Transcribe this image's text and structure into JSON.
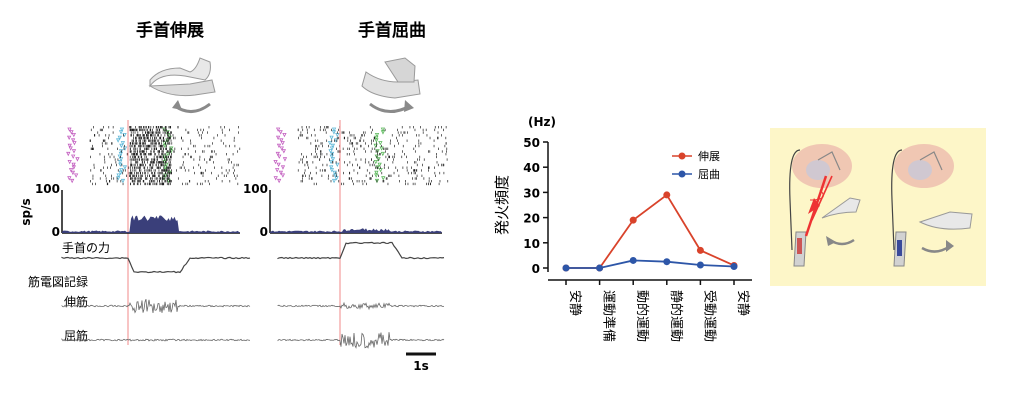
{
  "panels": {
    "extension": {
      "title": "手首伸展"
    },
    "flexion": {
      "title": "手首屈曲"
    }
  },
  "raster": {
    "rate_axis_label": "sp/s",
    "rate_max": "100",
    "rate_min": "0"
  },
  "traces": {
    "force_label": "手首の力",
    "emg_label": "筋電図記録",
    "extensor_label": "伸筋",
    "flexor_label": "屈筋"
  },
  "scale_bar": {
    "label": "1s"
  },
  "chart_data": {
    "type": "line",
    "title": "",
    "ylabel": "発火頻度",
    "yunit": "(Hz)",
    "ylim": [
      0,
      50
    ],
    "yticks": [
      0,
      10,
      20,
      30,
      40,
      50
    ],
    "categories": [
      "安静",
      "運動準備",
      "動的運動",
      "静的運動",
      "受動運動",
      "安静"
    ],
    "legend_position": "top-right",
    "series": [
      {
        "name": "伸展",
        "color": "#d9432b",
        "values": [
          0,
          0,
          19,
          29,
          7,
          1
        ]
      },
      {
        "name": "屈曲",
        "color": "#2d56a8",
        "values": [
          0,
          0,
          3,
          2.5,
          1.2,
          0.6
        ]
      }
    ]
  },
  "colors": {
    "marker_magenta": "#c35fc0",
    "marker_cyan": "#5fb8d8",
    "marker_green": "#5cb85c",
    "onset_line": "#f08a8a",
    "histogram": "#3a3f7a",
    "inset_bg": "#fdf6c8"
  }
}
